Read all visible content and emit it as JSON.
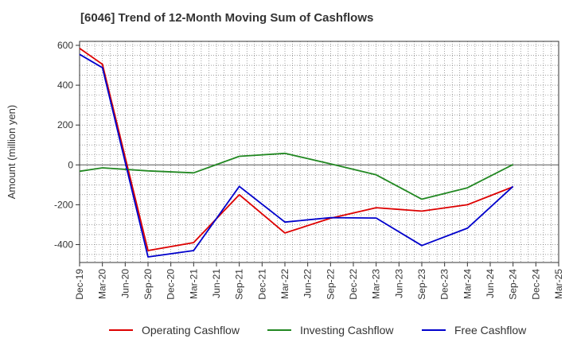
{
  "chart_data": {
    "type": "line",
    "title": "[6046]  Trend of 12-Month Moving Sum of Cashflows",
    "xlabel": "",
    "ylabel": "Amount (million yen)",
    "ylim": [
      -490,
      620
    ],
    "yticks": [
      600,
      400,
      200,
      0,
      -200,
      -400
    ],
    "ytick_labels": [
      "600",
      "400",
      "200",
      "0",
      "-200",
      "-400"
    ],
    "categories": [
      "Dec-19",
      "Mar-20",
      "Jun-20",
      "Sep-20",
      "Dec-20",
      "Mar-21",
      "Jun-21",
      "Sep-21",
      "Dec-21",
      "Mar-22",
      "Jun-22",
      "Sep-22",
      "Dec-22",
      "Mar-23",
      "Jun-23",
      "Sep-23",
      "Dec-23",
      "Mar-24",
      "Jun-24",
      "Sep-24",
      "Dec-24",
      "Mar-25"
    ],
    "grid": true,
    "legend_position": "bottom",
    "series": [
      {
        "name": "Operating Cashflow",
        "color": "#dd0000",
        "points": [
          [
            0,
            585
          ],
          [
            1,
            505
          ],
          [
            3,
            -430
          ],
          [
            5,
            -390
          ],
          [
            7,
            -150
          ],
          [
            9,
            -342
          ],
          [
            11,
            -268
          ],
          [
            13,
            -215
          ],
          [
            15,
            -232
          ],
          [
            17,
            -200
          ],
          [
            19,
            -110
          ]
        ]
      },
      {
        "name": "Investing Cashflow",
        "color": "#228822",
        "points": [
          [
            0,
            -32
          ],
          [
            1,
            -15
          ],
          [
            3,
            -30
          ],
          [
            5,
            -40
          ],
          [
            7,
            43
          ],
          [
            9,
            58
          ],
          [
            11,
            5
          ],
          [
            13,
            -50
          ],
          [
            15,
            -172
          ],
          [
            17,
            -115
          ],
          [
            19,
            2
          ]
        ]
      },
      {
        "name": "Free Cashflow",
        "color": "#0000cc",
        "points": [
          [
            0,
            555
          ],
          [
            1,
            488
          ],
          [
            3,
            -462
          ],
          [
            5,
            -430
          ],
          [
            7,
            -108
          ],
          [
            9,
            -287
          ],
          [
            11,
            -265
          ],
          [
            13,
            -267
          ],
          [
            15,
            -405
          ],
          [
            17,
            -318
          ],
          [
            19,
            -108
          ]
        ]
      }
    ]
  }
}
